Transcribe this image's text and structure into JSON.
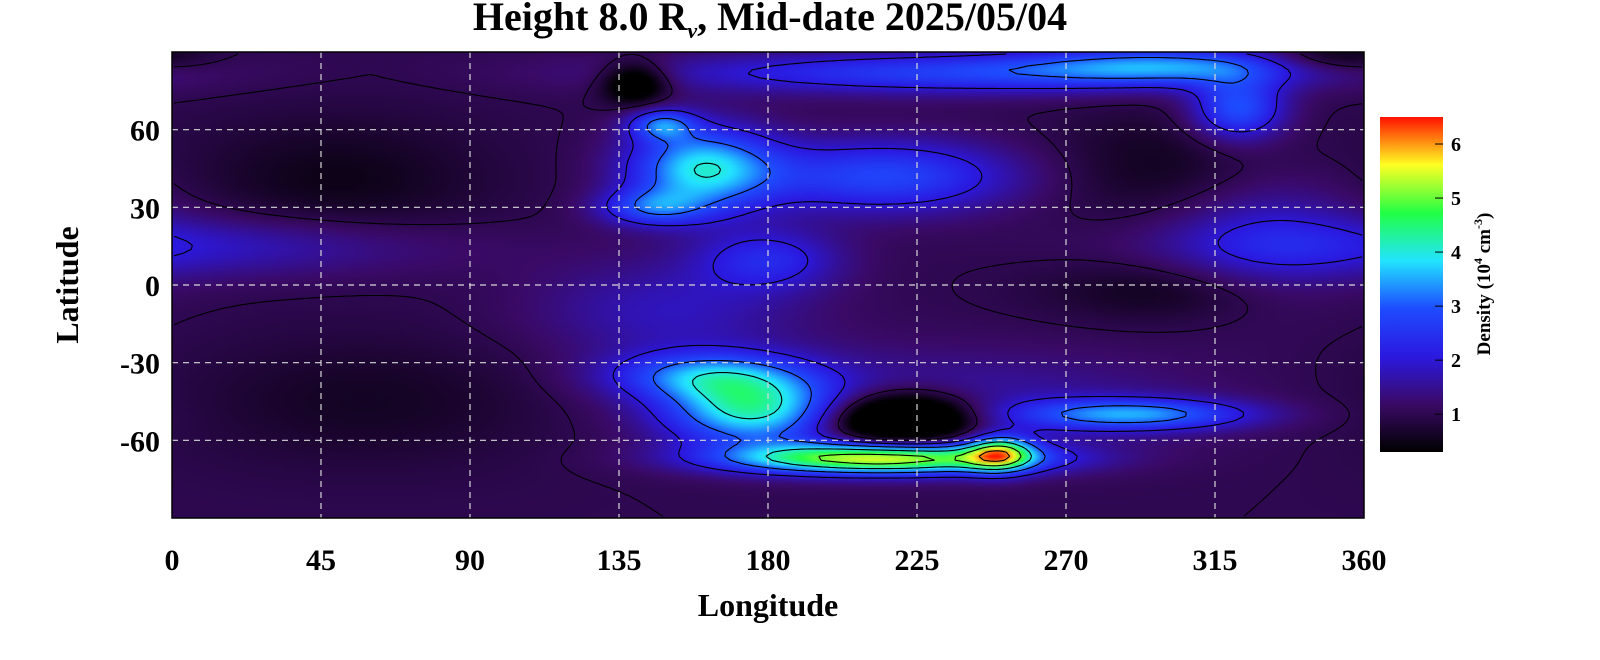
{
  "chart_data": {
    "type": "heatmap",
    "title": {
      "prefix": "Height 8.0 R",
      "subscript": "v",
      "suffix": ", Mid-date 2025/05/04"
    },
    "xlabel": "Longitude",
    "ylabel": "Latitude",
    "xlim": [
      0,
      360
    ],
    "ylim": [
      -90,
      90
    ],
    "x_ticks": [
      0,
      45,
      90,
      135,
      180,
      225,
      270,
      315,
      360
    ],
    "y_ticks": [
      60,
      30,
      0,
      -30,
      -60
    ],
    "grid": true,
    "colorbar": {
      "label": {
        "prefix": "Density (10",
        "exp1": "4",
        "mid": " cm",
        "exp2": "-3",
        "suffix": ")"
      },
      "ticks": [
        1,
        2,
        3,
        4,
        5,
        6
      ],
      "range": [
        0.3,
        6.5
      ],
      "colors": [
        "#000000",
        "#3a0a66",
        "#2b19e0",
        "#1e4cff",
        "#22e4ff",
        "#22ff44",
        "#ffff22",
        "#ff1100"
      ]
    },
    "background_density": 1.0,
    "features": [
      {
        "lon": 10,
        "lat": 15,
        "rlon": 70,
        "rlat": 12,
        "amp": 0.9
      },
      {
        "lon": 160,
        "lat": 45,
        "rlon": 22,
        "rlat": 16,
        "amp": 2.8
      },
      {
        "lon": 148,
        "lat": 62,
        "rlon": 10,
        "rlat": 6,
        "amp": 1.8
      },
      {
        "lon": 145,
        "lat": 30,
        "rlon": 16,
        "rlat": 7,
        "amp": 1.6
      },
      {
        "lon": 215,
        "lat": 42,
        "rlon": 40,
        "rlat": 14,
        "amp": 1.8
      },
      {
        "lon": 180,
        "lat": 10,
        "rlon": 22,
        "rlat": 12,
        "amp": 1.2
      },
      {
        "lon": 240,
        "lat": 82,
        "rlon": 90,
        "rlat": 8,
        "amp": 1.7
      },
      {
        "lon": 300,
        "lat": 85,
        "rlon": 40,
        "rlat": 7,
        "amp": 1.6
      },
      {
        "lon": 322,
        "lat": 68,
        "rlon": 14,
        "rlat": 12,
        "amp": 2.0
      },
      {
        "lon": 330,
        "lat": 20,
        "rlon": 30,
        "rlat": 25,
        "amp": 0.8
      },
      {
        "lon": 150,
        "lat": -10,
        "rlon": 40,
        "rlat": 20,
        "amp": 0.8
      },
      {
        "lon": 175,
        "lat": -48,
        "rlon": 26,
        "rlat": 14,
        "amp": 2.8
      },
      {
        "lon": 160,
        "lat": -35,
        "rlon": 28,
        "rlat": 9,
        "amp": 1.8
      },
      {
        "lon": 215,
        "lat": -67,
        "rlon": 45,
        "rlat": 6,
        "amp": 4.5
      },
      {
        "lon": 250,
        "lat": -65,
        "rlon": 10,
        "rlat": 7,
        "amp": 3.0
      },
      {
        "lon": 290,
        "lat": -50,
        "rlon": 35,
        "rlat": 6,
        "amp": 2.2
      },
      {
        "lon": 230,
        "lat": -45,
        "rlon": 80,
        "rlat": 20,
        "amp": 0.7
      },
      {
        "lon": 220,
        "lat": -52,
        "rlon": 22,
        "rlat": 10,
        "amp": -3.0
      },
      {
        "lon": 50,
        "lat": 40,
        "rlon": 45,
        "rlat": 25,
        "amp": -0.5
      },
      {
        "lon": 300,
        "lat": 45,
        "rlon": 35,
        "rlat": 22,
        "amp": -0.5
      },
      {
        "lon": 300,
        "lat": -2,
        "rlon": 35,
        "rlat": 12,
        "amp": -0.5
      },
      {
        "lon": 140,
        "lat": 78,
        "rlon": 10,
        "rlat": 8,
        "amp": -1.5
      },
      {
        "lon": 350,
        "lat": 88,
        "rlon": 20,
        "rlat": 6,
        "amp": -0.8
      },
      {
        "lon": 60,
        "lat": -45,
        "rlon": 60,
        "rlat": 25,
        "amp": -0.4
      }
    ]
  }
}
